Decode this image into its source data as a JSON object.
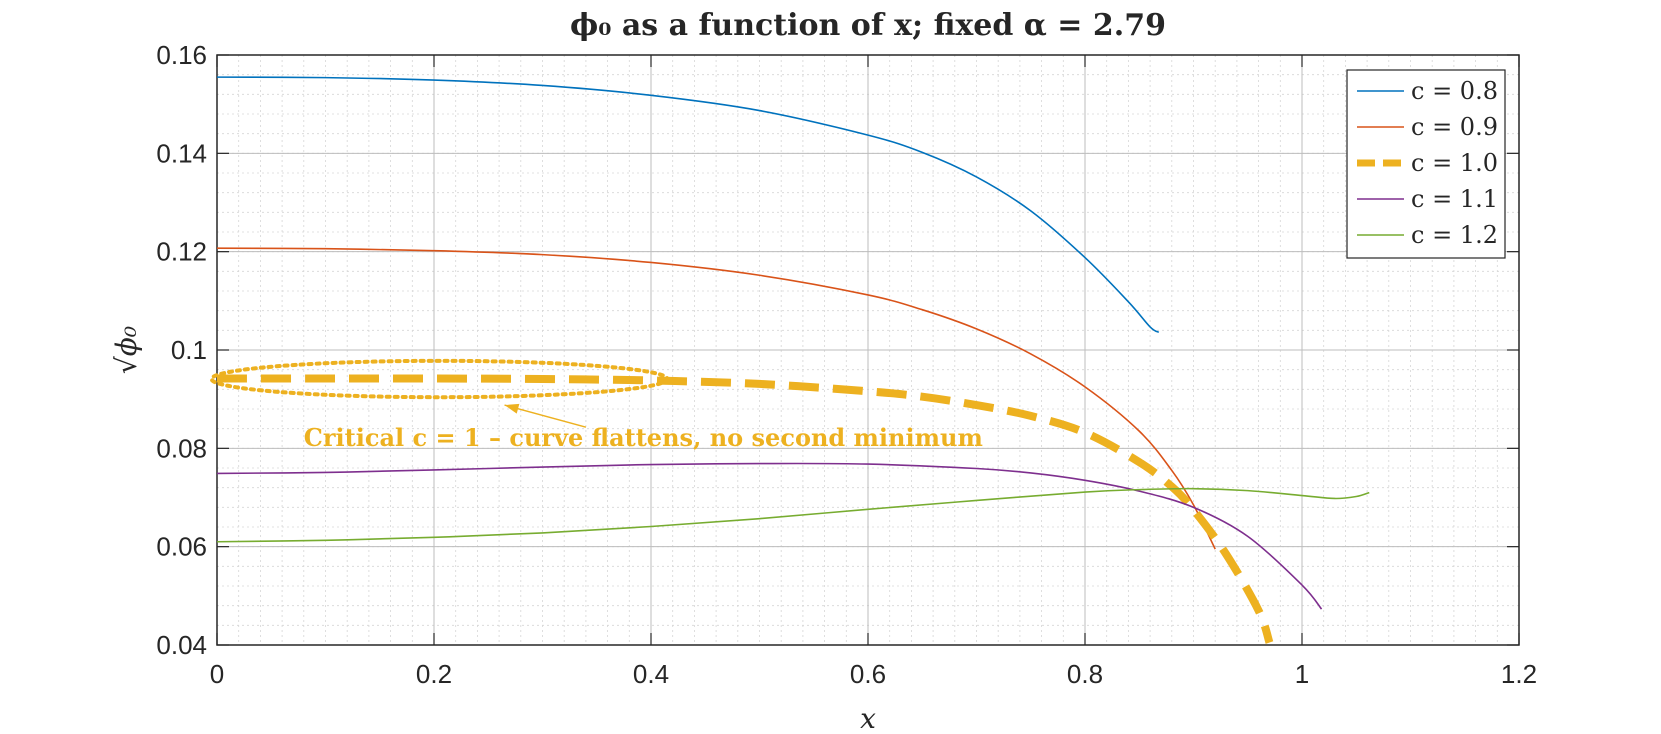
{
  "chart_data": {
    "type": "line",
    "title": "ϕ₀ as a function of x; fixed α = 2.79",
    "xlabel": "x",
    "ylabel": "√ϕ₀",
    "xlim": [
      0,
      1.2
    ],
    "ylim": [
      0.04,
      0.16
    ],
    "xticks": [
      0,
      0.2,
      0.4,
      0.6,
      0.8,
      1,
      1.2
    ],
    "xtick_labels": [
      "0",
      "0.2",
      "0.4",
      "0.6",
      "0.8",
      "1",
      "1.2"
    ],
    "yticks": [
      0.04,
      0.06,
      0.08,
      0.1,
      0.12,
      0.14,
      0.16
    ],
    "ytick_labels": [
      "0.04",
      "0.06",
      "0.08",
      "0.1",
      "0.12",
      "0.14",
      "0.16"
    ],
    "grid": true,
    "minor_grid": true,
    "legend_position": "top-right",
    "series": [
      {
        "name": "c = 0.8",
        "color": "#0072BD",
        "style": "solid",
        "x": [
          0,
          0.1,
          0.2,
          0.3,
          0.4,
          0.5,
          0.6,
          0.65,
          0.7,
          0.75,
          0.8,
          0.84,
          0.86,
          0.868
        ],
        "y": [
          0.1555,
          0.1554,
          0.1549,
          0.1538,
          0.1518,
          0.1487,
          0.1437,
          0.1402,
          0.1352,
          0.1283,
          0.1188,
          0.1098,
          0.1047,
          0.1036
        ]
      },
      {
        "name": "c = 0.9",
        "color": "#D95319",
        "style": "solid",
        "x": [
          0,
          0.1,
          0.2,
          0.3,
          0.4,
          0.5,
          0.6,
          0.65,
          0.7,
          0.75,
          0.8,
          0.85,
          0.88,
          0.9,
          0.92
        ],
        "y": [
          0.1207,
          0.1206,
          0.1202,
          0.1194,
          0.1178,
          0.1152,
          0.1112,
          0.1082,
          0.1043,
          0.0992,
          0.0925,
          0.0835,
          0.0755,
          0.0685,
          0.0595
        ]
      },
      {
        "name": "c = 1.0",
        "color": "#EDB120",
        "style": "dashed",
        "x": [
          0,
          0.1,
          0.2,
          0.3,
          0.4,
          0.5,
          0.6,
          0.65,
          0.7,
          0.75,
          0.8,
          0.85,
          0.88,
          0.9,
          0.93,
          0.96,
          0.97
        ],
        "y": [
          0.0942,
          0.0942,
          0.0942,
          0.0941,
          0.0938,
          0.0931,
          0.0916,
          0.0905,
          0.0888,
          0.0866,
          0.0832,
          0.0772,
          0.0722,
          0.0675,
          0.0585,
          0.047,
          0.0405
        ]
      },
      {
        "name": "c = 1.1",
        "color": "#7E2F8E",
        "style": "solid",
        "x": [
          0,
          0.1,
          0.2,
          0.3,
          0.4,
          0.5,
          0.6,
          0.7,
          0.75,
          0.8,
          0.85,
          0.9,
          0.95,
          1.0,
          1.018
        ],
        "y": [
          0.0749,
          0.0751,
          0.0756,
          0.0762,
          0.0767,
          0.0769,
          0.0768,
          0.0759,
          0.075,
          0.0735,
          0.0713,
          0.068,
          0.0621,
          0.0522,
          0.0473
        ]
      },
      {
        "name": "c = 1.2",
        "color": "#77AC30",
        "style": "solid",
        "x": [
          0,
          0.1,
          0.2,
          0.3,
          0.4,
          0.5,
          0.6,
          0.7,
          0.8,
          0.85,
          0.9,
          0.95,
          1.0,
          1.03,
          1.05,
          1.062
        ],
        "y": [
          0.061,
          0.0613,
          0.0619,
          0.0628,
          0.0641,
          0.0657,
          0.0676,
          0.0694,
          0.0711,
          0.0716,
          0.0718,
          0.0714,
          0.0704,
          0.0698,
          0.0702,
          0.071
        ]
      }
    ],
    "annotations": [
      {
        "text": "Critical c = 1 – curve flattens, no second minimum",
        "color": "#EDB120",
        "text_x": 0.08,
        "text_y": 0.0805,
        "arrow_tip": [
          0.265,
          0.0888
        ],
        "arrow_tail": [
          0.34,
          0.0843
        ],
        "ellipse_center": [
          0.205,
          0.0941
        ],
        "ellipse_radii": [
          0.21,
          0.0037
        ]
      }
    ]
  }
}
